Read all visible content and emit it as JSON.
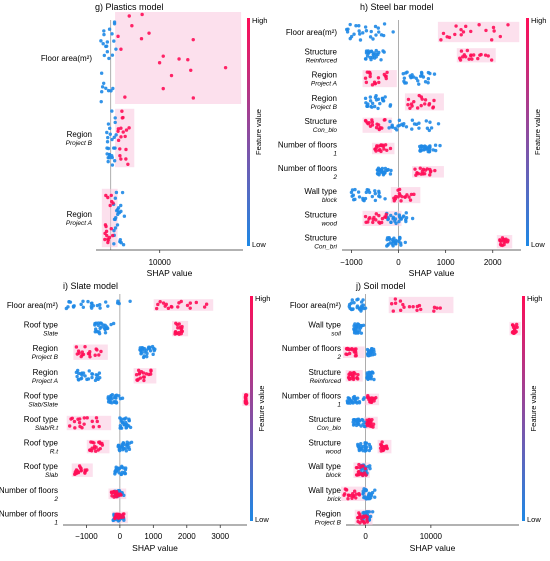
{
  "colors": {
    "low": "#1e88e5",
    "high": "#ff0d57",
    "zero_line": "#999999",
    "highlight": "#f9c6de"
  },
  "chart_data": [
    {
      "type": "scatter",
      "subtype": "shap-beeswarm",
      "title": "g) Plastics model",
      "xlabel": "SHAP value",
      "xlim": [
        -3000,
        27000
      ],
      "xticks": [
        10000
      ],
      "colorbar": {
        "label": "Feature value",
        "high": "High",
        "low": "Low"
      },
      "features": [
        {
          "name": "Floor area(m²)",
          "sub": "",
          "low_range": [
            -2000,
            1500
          ],
          "high_range": [
            1500,
            26000
          ],
          "spread": 0.55
        },
        {
          "name": "Region",
          "sub": "Project B",
          "low_range": [
            -800,
            1500
          ],
          "high_range": [
            1500,
            4200
          ],
          "spread": 0.34
        },
        {
          "name": "Region",
          "sub": "Project A",
          "low_range": [
            600,
            3000
          ],
          "high_range": [
            -1200,
            800
          ],
          "spread": 0.34
        }
      ]
    },
    {
      "type": "scatter",
      "subtype": "shap-beeswarm",
      "title": "h) Steel bar model",
      "xlabel": "SHAP value",
      "xlim": [
        -1200,
        2600
      ],
      "xticks": [
        -1000,
        0,
        1000,
        2000
      ],
      "colorbar": {
        "label": "Feature value",
        "high": "High",
        "low": "Low"
      },
      "features": [
        {
          "name": "Floor area(m²)",
          "sub": "",
          "low_range": [
            -1100,
            0
          ],
          "high_range": [
            900,
            2500
          ],
          "spread": 0.35
        },
        {
          "name": "Structure",
          "sub": "Reinforced",
          "low_range": [
            -700,
            -250
          ],
          "high_range": [
            1300,
            2000
          ],
          "spread": 0.22
        },
        {
          "name": "Region",
          "sub": "Project A",
          "low_range": [
            100,
            850
          ],
          "high_range": [
            -700,
            -100
          ],
          "spread": 0.28
        },
        {
          "name": "Region",
          "sub": "Project B",
          "low_range": [
            -700,
            -100
          ],
          "high_range": [
            200,
            900
          ],
          "spread": 0.28
        },
        {
          "name": "Structure",
          "sub": "Con_blo",
          "low_range": [
            -200,
            900
          ],
          "high_range": [
            -700,
            -200
          ],
          "spread": 0.24
        },
        {
          "name": "Number of floors",
          "sub": "1",
          "low_range": [
            450,
            900
          ],
          "high_range": [
            -500,
            -150
          ],
          "spread": 0.16
        },
        {
          "name": "Number of floors",
          "sub": "2",
          "low_range": [
            -450,
            -150
          ],
          "high_range": [
            350,
            900
          ],
          "spread": 0.16
        },
        {
          "name": "Wall type",
          "sub": "block",
          "low_range": [
            -1000,
            -200
          ],
          "high_range": [
            -100,
            400
          ],
          "spread": 0.26
        },
        {
          "name": "Structure",
          "sub": "wood",
          "low_range": [
            -250,
            350
          ],
          "high_range": [
            -700,
            0
          ],
          "spread": 0.24
        },
        {
          "name": "Structure",
          "sub": "Con_bri",
          "low_range": [
            -250,
            150
          ],
          "high_range": [
            2150,
            2350
          ],
          "spread": 0.2
        }
      ]
    },
    {
      "type": "scatter",
      "subtype": "shap-beeswarm",
      "title": "i) Slate model",
      "xlabel": "SHAP value",
      "xlim": [
        -1700,
        3800
      ],
      "xticks": [
        -1000,
        0,
        1000,
        2000,
        3000
      ],
      "colorbar": {
        "label": "Feature value",
        "high": "High",
        "low": "Low"
      },
      "features": [
        {
          "name": "Floor area(m²)",
          "sub": "",
          "low_range": [
            -1600,
            400
          ],
          "high_range": [
            1100,
            2700
          ],
          "spread": 0.16
        },
        {
          "name": "Roof type",
          "sub": "Slate",
          "low_range": [
            -750,
            -150
          ],
          "high_range": [
            1650,
            1950
          ],
          "spread": 0.24
        },
        {
          "name": "Region",
          "sub": "Project B",
          "low_range": [
            600,
            1100
          ],
          "high_range": [
            -1300,
            -450
          ],
          "spread": 0.24
        },
        {
          "name": "Region",
          "sub": "Project A",
          "low_range": [
            -1300,
            -450
          ],
          "high_range": [
            500,
            1000
          ],
          "spread": 0.24
        },
        {
          "name": "Roof type",
          "sub": "Slab/Slate",
          "low_range": [
            -350,
            100
          ],
          "high_range": [
            3750,
            3800
          ],
          "spread": 0.2
        },
        {
          "name": "Roof type",
          "sub": "Slab/R.t",
          "low_range": [
            0,
            400
          ],
          "high_range": [
            -1500,
            -350
          ],
          "spread": 0.22
        },
        {
          "name": "Roof type",
          "sub": "R.t",
          "low_range": [
            -50,
            400
          ],
          "high_range": [
            -900,
            -400
          ],
          "spread": 0.2
        },
        {
          "name": "Roof type",
          "sub": "Slab",
          "low_range": [
            -150,
            250
          ],
          "high_range": [
            -1350,
            -900
          ],
          "spread": 0.2
        },
        {
          "name": "Number of floors",
          "sub": "2",
          "low_range": [
            -150,
            150
          ],
          "high_range": [
            -250,
            100
          ],
          "spread": 0.14
        },
        {
          "name": "Number of floors",
          "sub": "1",
          "low_range": [
            -200,
            200
          ],
          "high_range": [
            -150,
            150
          ],
          "spread": 0.16
        }
      ]
    },
    {
      "type": "scatter",
      "subtype": "shap-beeswarm",
      "title": "j) Soil model",
      "xlabel": "SHAP value",
      "xlim": [
        -3000,
        23500
      ],
      "xticks": [
        0,
        10000
      ],
      "colorbar": {
        "label": "Feature value",
        "high": "High",
        "low": "Low"
      },
      "features": [
        {
          "name": "Floor area(m²)",
          "sub": "",
          "low_range": [
            -2500,
            1000
          ],
          "high_range": [
            4000,
            13000
          ],
          "spread": 0.26
        },
        {
          "name": "Wall type",
          "sub": "soil",
          "low_range": [
            -1800,
            -200
          ],
          "high_range": [
            22500,
            23300
          ],
          "spread": 0.2
        },
        {
          "name": "Number of floors",
          "sub": "2",
          "low_range": [
            300,
            1500
          ],
          "high_range": [
            -3000,
            -600
          ],
          "spread": 0.16
        },
        {
          "name": "Structure",
          "sub": "Reinforced",
          "low_range": [
            200,
            1300
          ],
          "high_range": [
            -2600,
            -900
          ],
          "spread": 0.16
        },
        {
          "name": "Number of floors",
          "sub": "1",
          "low_range": [
            -2800,
            -200
          ],
          "high_range": [
            300,
            1600
          ],
          "spread": 0.16
        },
        {
          "name": "Structure",
          "sub": "Con_blo",
          "low_range": [
            -1900,
            200
          ],
          "high_range": [
            200,
            1400
          ],
          "spread": 0.18
        },
        {
          "name": "Structure",
          "sub": "wood",
          "low_range": [
            -1200,
            1300
          ],
          "high_range": [
            2300,
            3500
          ],
          "spread": 0.2
        },
        {
          "name": "Wall type",
          "sub": "block",
          "low_range": [
            -700,
            800
          ],
          "high_range": [
            -1400,
            200
          ],
          "spread": 0.24
        },
        {
          "name": "Wall type",
          "sub": "brick",
          "low_range": [
            -400,
            1600
          ],
          "high_range": [
            -3300,
            -300
          ],
          "spread": 0.22
        },
        {
          "name": "Region",
          "sub": "Project B",
          "low_range": [
            -500,
            1400
          ],
          "high_range": [
            -1200,
            600
          ],
          "spread": 0.24
        }
      ]
    }
  ]
}
